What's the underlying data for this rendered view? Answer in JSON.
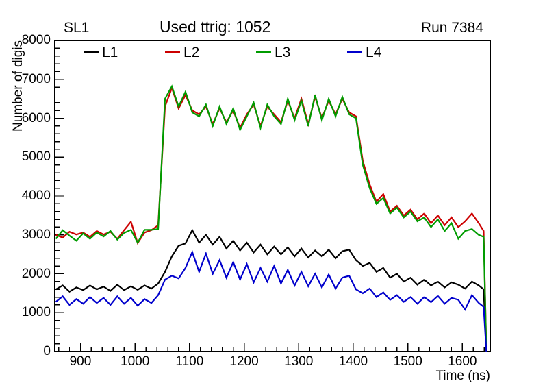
{
  "header": {
    "left": "SL1",
    "center": "Used ttrig: 1052",
    "right": "Run 7384"
  },
  "chart_data": {
    "type": "line",
    "title": "Used ttrig: 1052",
    "subtitle_left": "SL1",
    "subtitle_right": "Run 7384",
    "xlabel": "Time (ns)",
    "ylabel": "Number of digis",
    "xlim": [
      853,
      1651
    ],
    "ylim": [
      0,
      8000
    ],
    "x_ticks": [
      900,
      1000,
      1100,
      1200,
      1300,
      1400,
      1500,
      1600
    ],
    "y_ticks": [
      0,
      1000,
      2000,
      3000,
      4000,
      5000,
      6000,
      7000,
      8000
    ],
    "x_minor_step": 20,
    "y_minor_step": 200,
    "grid": false,
    "legend_position": "top-inside-horizontal",
    "frame_color": "#000000",
    "x": [
      855,
      867.5,
      880,
      892.5,
      905,
      917.5,
      930,
      942.5,
      955,
      967.5,
      980,
      992.5,
      1005,
      1017.5,
      1030,
      1042.5,
      1055,
      1067.5,
      1080,
      1092.5,
      1105,
      1117.5,
      1130,
      1142.5,
      1155,
      1167.5,
      1180,
      1192.5,
      1205,
      1217.5,
      1230,
      1242.5,
      1255,
      1267.5,
      1280,
      1292.5,
      1305,
      1317.5,
      1330,
      1342.5,
      1355,
      1367.5,
      1380,
      1392.5,
      1405,
      1417.5,
      1430,
      1442.5,
      1455,
      1467.5,
      1480,
      1492.5,
      1505,
      1517.5,
      1530,
      1542.5,
      1555,
      1567.5,
      1580,
      1592.5,
      1605,
      1617.5,
      1630,
      1639,
      1644
    ],
    "series": [
      {
        "name": "L1",
        "color": "#000000",
        "values": [
          1600,
          1700,
          1540,
          1650,
          1580,
          1700,
          1600,
          1670,
          1560,
          1720,
          1580,
          1680,
          1590,
          1700,
          1620,
          1750,
          2050,
          2450,
          2720,
          2780,
          3120,
          2800,
          3000,
          2750,
          2950,
          2650,
          2850,
          2600,
          2800,
          2550,
          2750,
          2500,
          2700,
          2500,
          2680,
          2450,
          2650,
          2420,
          2600,
          2450,
          2620,
          2400,
          2580,
          2620,
          2350,
          2200,
          2280,
          2050,
          2150,
          1900,
          2000,
          1800,
          1900,
          1720,
          1850,
          1700,
          1800,
          1650,
          1780,
          1720,
          1620,
          1800,
          1700,
          1600,
          0
        ]
      },
      {
        "name": "L2",
        "color": "#cc0000",
        "values": [
          3000,
          2930,
          3080,
          3010,
          3060,
          2950,
          3100,
          3010,
          3080,
          2900,
          3120,
          3340,
          2790,
          3060,
          3120,
          3250,
          6300,
          6780,
          6250,
          6600,
          6200,
          6100,
          6300,
          5850,
          6250,
          5900,
          6200,
          5750,
          6100,
          6350,
          5800,
          6300,
          6100,
          5900,
          6450,
          6000,
          6500,
          5850,
          6550,
          6000,
          6450,
          6100,
          6500,
          6150,
          6050,
          4900,
          4300,
          3850,
          4050,
          3600,
          3750,
          3500,
          3650,
          3400,
          3550,
          3300,
          3500,
          3250,
          3450,
          3200,
          3350,
          3550,
          3300,
          3100,
          0
        ]
      },
      {
        "name": "L3",
        "color": "#009c00",
        "values": [
          2900,
          3120,
          2980,
          2850,
          3040,
          2900,
          3060,
          2960,
          3100,
          2880,
          3050,
          3130,
          2800,
          3130,
          3130,
          3150,
          6500,
          6820,
          6300,
          6680,
          6150,
          6050,
          6350,
          5800,
          6300,
          5850,
          6250,
          5700,
          6050,
          6400,
          5750,
          6350,
          6050,
          5850,
          6500,
          5950,
          6450,
          5800,
          6600,
          5950,
          6500,
          6050,
          6550,
          6100,
          6000,
          4800,
          4200,
          3800,
          3950,
          3550,
          3700,
          3450,
          3600,
          3350,
          3450,
          3200,
          3400,
          3100,
          3300,
          2900,
          3100,
          3150,
          3000,
          2950,
          0
        ]
      },
      {
        "name": "L4",
        "color": "#0000cc",
        "values": [
          1280,
          1420,
          1200,
          1350,
          1230,
          1400,
          1250,
          1380,
          1200,
          1420,
          1230,
          1380,
          1180,
          1350,
          1250,
          1450,
          1850,
          1950,
          1880,
          2150,
          2560,
          2050,
          2520,
          2000,
          2350,
          1900,
          2300,
          1850,
          2250,
          1780,
          2150,
          1800,
          2200,
          1750,
          2100,
          1700,
          2050,
          1680,
          2000,
          1650,
          1980,
          1620,
          1900,
          1950,
          1600,
          1500,
          1620,
          1400,
          1520,
          1330,
          1450,
          1280,
          1400,
          1230,
          1400,
          1270,
          1430,
          1230,
          1380,
          1330,
          1080,
          1450,
          1250,
          1150,
          0
        ]
      }
    ]
  }
}
